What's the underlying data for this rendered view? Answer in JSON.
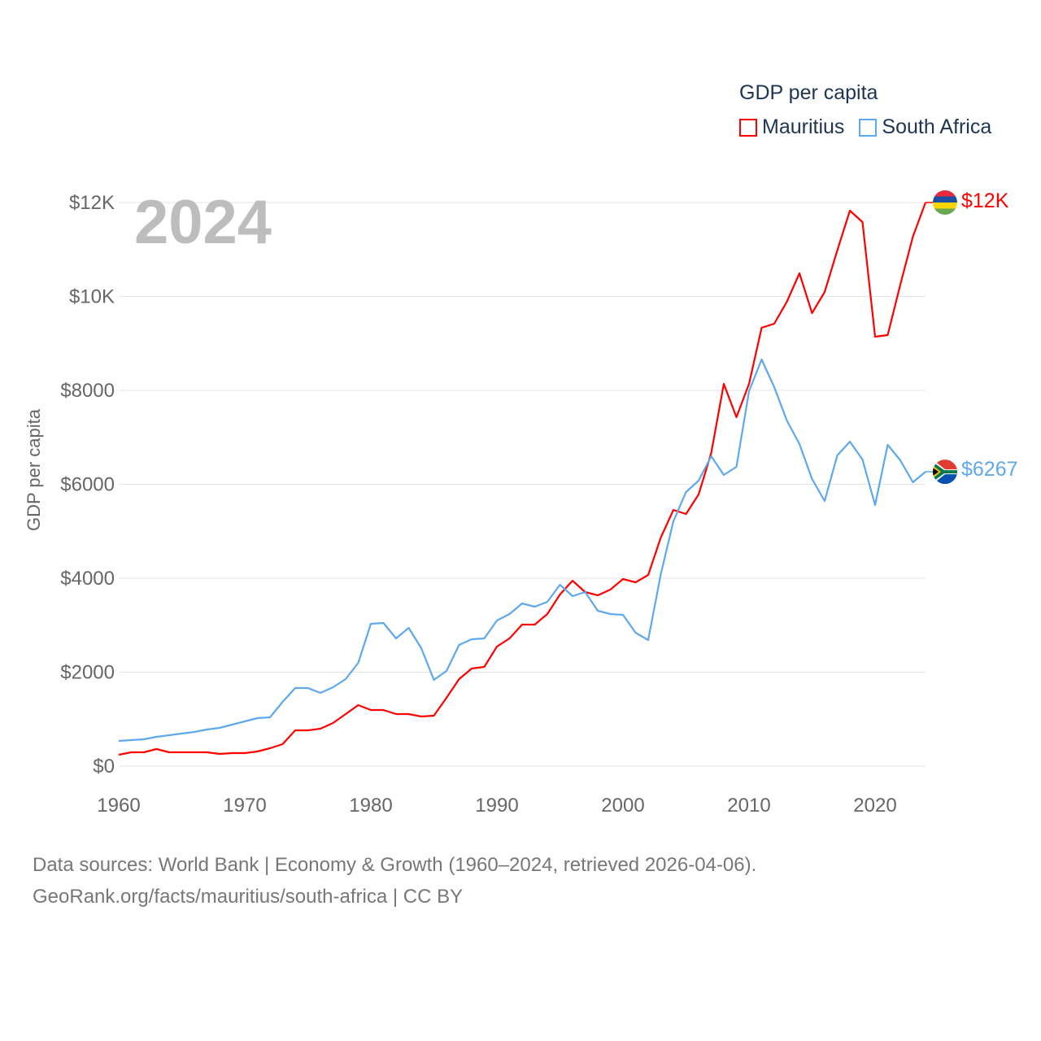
{
  "chart_data": {
    "type": "line",
    "title": "GDP per capita",
    "year_label": "2024",
    "ylabel": "GDP per capita",
    "xlim": [
      1960,
      2024
    ],
    "ylim": [
      0,
      12000
    ],
    "grid": true,
    "legend_position": "top-right",
    "x_ticks": [
      1960,
      1970,
      1980,
      1990,
      2000,
      2010,
      2020
    ],
    "x_tick_labels": [
      "1960",
      "1970",
      "1980",
      "1990",
      "2000",
      "2010",
      "2020"
    ],
    "y_ticks": [
      0,
      2000,
      4000,
      6000,
      8000,
      10000,
      12000
    ],
    "y_tick_labels": [
      "$0",
      "$2000",
      "$4000",
      "$6000",
      "$8000",
      "$10K",
      "$12K"
    ],
    "x_start": 1960,
    "series": [
      {
        "name": "Mauritius",
        "color": "#ff0000",
        "end_label": "$12K",
        "values": [
          242,
          294,
          294,
          364,
          294,
          294,
          294,
          294,
          260,
          277,
          277,
          312,
          381,
          468,
          762,
          762,
          797,
          918,
          1108,
          1299,
          1195,
          1195,
          1108,
          1108,
          1056,
          1074,
          1455,
          1853,
          2078,
          2113,
          2545,
          2719,
          3013,
          3013,
          3238,
          3654,
          3948,
          3706,
          3636,
          3758,
          3983,
          3913,
          4069,
          4866,
          5455,
          5368,
          5784,
          6667,
          8139,
          7429,
          8139,
          9333,
          9420,
          9887,
          10494,
          9645,
          10095,
          10978,
          11827,
          11584,
          9143,
          9177,
          10251,
          11273,
          12000
        ]
      },
      {
        "name": "South Africa",
        "color": "#5ea8ee",
        "end_label": "$6267",
        "values": [
          537,
          554,
          571,
          623,
          658,
          693,
          727,
          779,
          814,
          883,
          952,
          1022,
          1039,
          1368,
          1662,
          1662,
          1558,
          1680,
          1853,
          2199,
          3030,
          3048,
          2719,
          2944,
          2511,
          1835,
          2026,
          2580,
          2701,
          2719,
          3100,
          3238,
          3463,
          3394,
          3498,
          3861,
          3619,
          3706,
          3307,
          3238,
          3221,
          2840,
          2684,
          4087,
          5212,
          5835,
          6078,
          6597,
          6199,
          6372,
          7983,
          8658,
          8069,
          7359,
          6857,
          6113,
          5645,
          6615,
          6909,
          6528,
          5558,
          6840,
          6511,
          6043,
          6267
        ]
      }
    ]
  },
  "footer": {
    "line1": "Data sources: World Bank | Economy & Growth (1960–2024, retrieved 2026-04-06).",
    "line2": "GeoRank.org/facts/mauritius/south-africa | CC BY"
  }
}
